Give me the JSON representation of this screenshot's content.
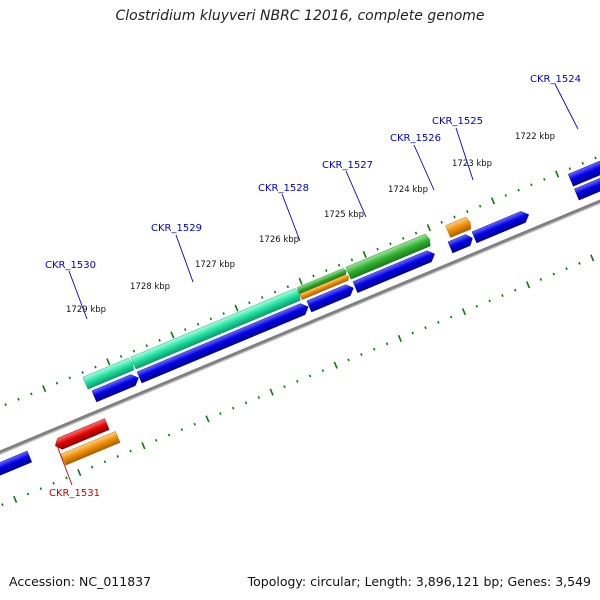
{
  "header": {
    "title": "Clostridium kluyveri NBRC 12016, complete genome"
  },
  "footer": {
    "accession": "Accession: NC_011837",
    "summary": "Topology: circular; Length: 3,896,121 bp; Genes: 3,549"
  },
  "colors": {
    "backbone": "#808080",
    "tick": "#0a7a0a",
    "gene_blue": "#0000e0",
    "gene_teal": "#20e0a0",
    "gene_green": "#30b030",
    "gene_orange": "#f08c00",
    "gene_red": "#e00000",
    "label_blue": "#0000cc",
    "label_red": "#cc0000"
  },
  "scale_labels": [
    "1722 kbp",
    "1723 kbp",
    "1724 kbp",
    "1725 kbp",
    "1726 kbp",
    "1727 kbp",
    "1728 kbp",
    "1729 kbp"
  ],
  "gene_labels": [
    {
      "name": "CKR_1524",
      "strand": "forward"
    },
    {
      "name": "CKR_1525",
      "strand": "forward"
    },
    {
      "name": "CKR_1526",
      "strand": "forward"
    },
    {
      "name": "CKR_1527",
      "strand": "forward"
    },
    {
      "name": "CKR_1528",
      "strand": "forward"
    },
    {
      "name": "CKR_1529",
      "strand": "forward"
    },
    {
      "name": "CKR_1530",
      "strand": "forward"
    },
    {
      "name": "CKR_1531",
      "strand": "reverse"
    }
  ]
}
